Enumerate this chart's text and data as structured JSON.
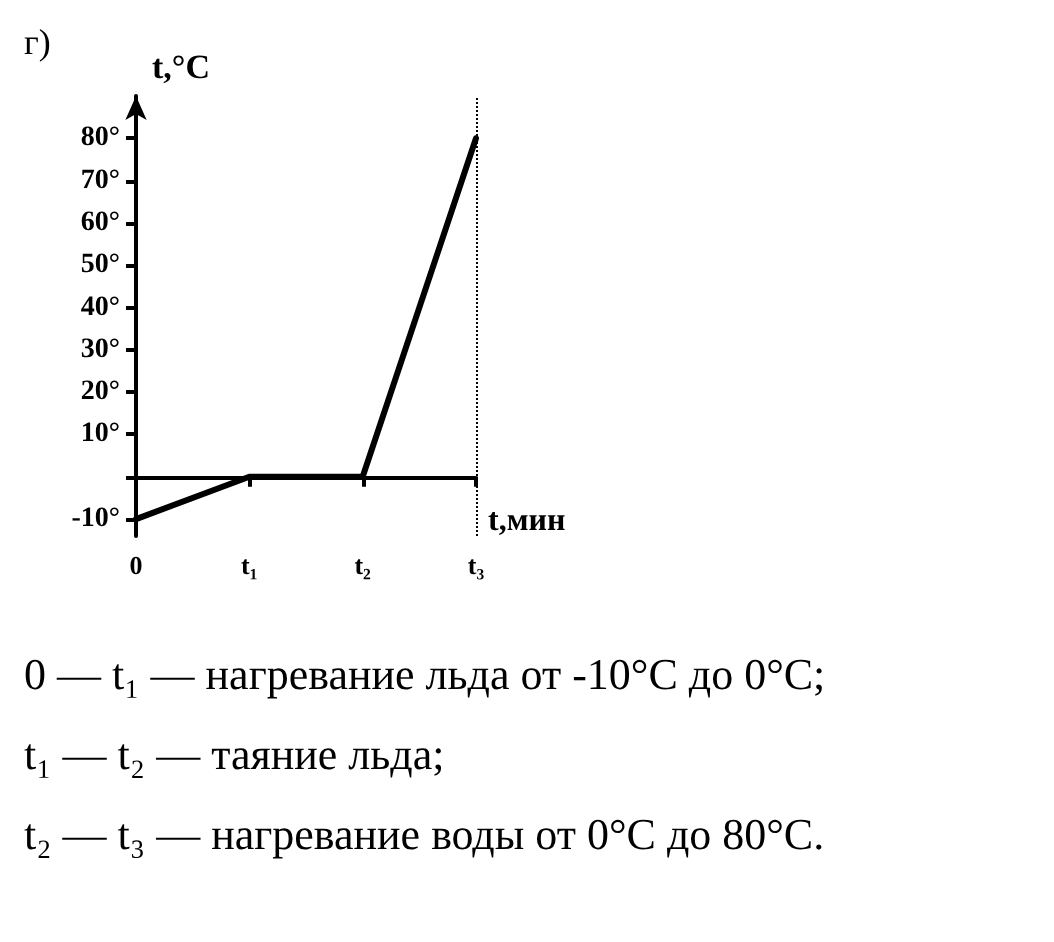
{
  "chart_data": {
    "type": "line",
    "xlabel": "t,мин",
    "ylabel": "t,°C",
    "categories": [
      "0",
      "t₁",
      "t₂",
      "t₃"
    ],
    "values": [
      -10,
      0,
      0,
      80
    ],
    "color": "#000000",
    "marker": "none",
    "line_style": "solid",
    "ylim": [
      -14,
      90
    ],
    "yticks": [
      {
        "value": -10,
        "label": "-10°"
      },
      {
        "value": 0,
        "label": null
      },
      {
        "value": 10,
        "label": "10°"
      },
      {
        "value": 20,
        "label": "20°"
      },
      {
        "value": 30,
        "label": "30°"
      },
      {
        "value": 40,
        "label": "40°"
      },
      {
        "value": 50,
        "label": "50°"
      },
      {
        "value": 60,
        "label": "60°"
      },
      {
        "value": 70,
        "label": "70°"
      },
      {
        "value": 80,
        "label": "80°"
      }
    ],
    "ref_lines": [
      {
        "axis": "x",
        "value": "t₃",
        "line_style": "dotted",
        "color": "#000000"
      }
    ],
    "annotations": [
      "г)",
      "0 — t₁ — нагревание льда от -10°C до 0°C;",
      "t₁ — t₂ — таяние льда;",
      "t₂ — t₃ — нагревание воды от 0°C до 80°C."
    ]
  }
}
